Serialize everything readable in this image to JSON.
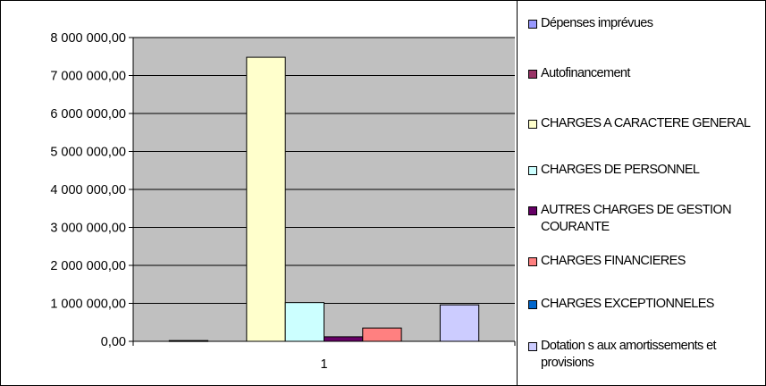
{
  "chart_data": {
    "type": "bar",
    "categories": [
      "1"
    ],
    "ylim": [
      0,
      8000000
    ],
    "y_ticks": [
      "0,00",
      "1 000 000,00",
      "2 000 000,00",
      "3 000 000,00",
      "4 000 000,00",
      "5 000 000,00",
      "6 000 000,00",
      "7 000 000,00",
      "8 000 000,00"
    ],
    "y_tick_values": [
      0,
      1000000,
      2000000,
      3000000,
      4000000,
      5000000,
      6000000,
      7000000,
      8000000
    ],
    "grid": true,
    "plot_background": "#c0c0c0",
    "legend_position": "right",
    "series": [
      {
        "name": "Dépenses imprévues",
        "values": [
          20000
        ],
        "color": "#9999ff"
      },
      {
        "name": "Autofinancement",
        "values": [
          0
        ],
        "color": "#993366"
      },
      {
        "name": "CHARGES A CARACTERE GENERAL",
        "values": [
          7480000
        ],
        "color": "#ffffcc"
      },
      {
        "name": "CHARGES DE PERSONNEL",
        "values": [
          1020000
        ],
        "color": "#ccffff"
      },
      {
        "name": "AUTRES CHARGES DE GESTION COURANTE",
        "values": [
          120000
        ],
        "color": "#660066"
      },
      {
        "name": "CHARGES FINANCIERES",
        "values": [
          350000
        ],
        "color": "#ff8080"
      },
      {
        "name": "CHARGES EXCEPTIONNELES",
        "values": [
          0
        ],
        "color": "#0066cc"
      },
      {
        "name": "Dotation s aux amortissements et provisions",
        "values": [
          960000
        ],
        "color": "#ccccff"
      }
    ]
  }
}
